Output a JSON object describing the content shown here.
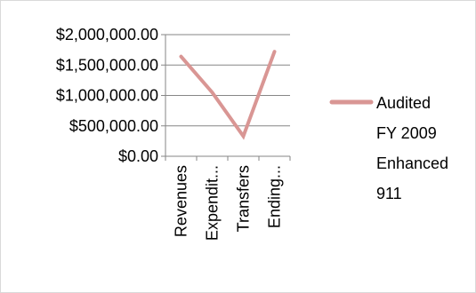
{
  "chart_data": {
    "type": "line",
    "categories": [
      "Revenues",
      "Expendit...",
      "Transfers",
      "Ending..."
    ],
    "series": [
      {
        "name": "Audited FY 2009 Enhanced 911",
        "name_lines": [
          "Audited",
          "FY 2009",
          "Enhanced",
          "911"
        ],
        "values": [
          1640000,
          1050000,
          330000,
          1720000
        ],
        "color": "#d99694"
      }
    ],
    "y_ticks": [
      {
        "value": 0,
        "label": "$0.00"
      },
      {
        "value": 500000,
        "label": "$500,000.00"
      },
      {
        "value": 1000000,
        "label": "$1,000,000.00"
      },
      {
        "value": 1500000,
        "label": "$1,500,000.00"
      },
      {
        "value": 2000000,
        "label": "$2,000,000.00"
      }
    ],
    "ylim": [
      0,
      2000000
    ],
    "grid": true,
    "legend_position": "right",
    "title": "",
    "xlabel": "",
    "ylabel": ""
  }
}
